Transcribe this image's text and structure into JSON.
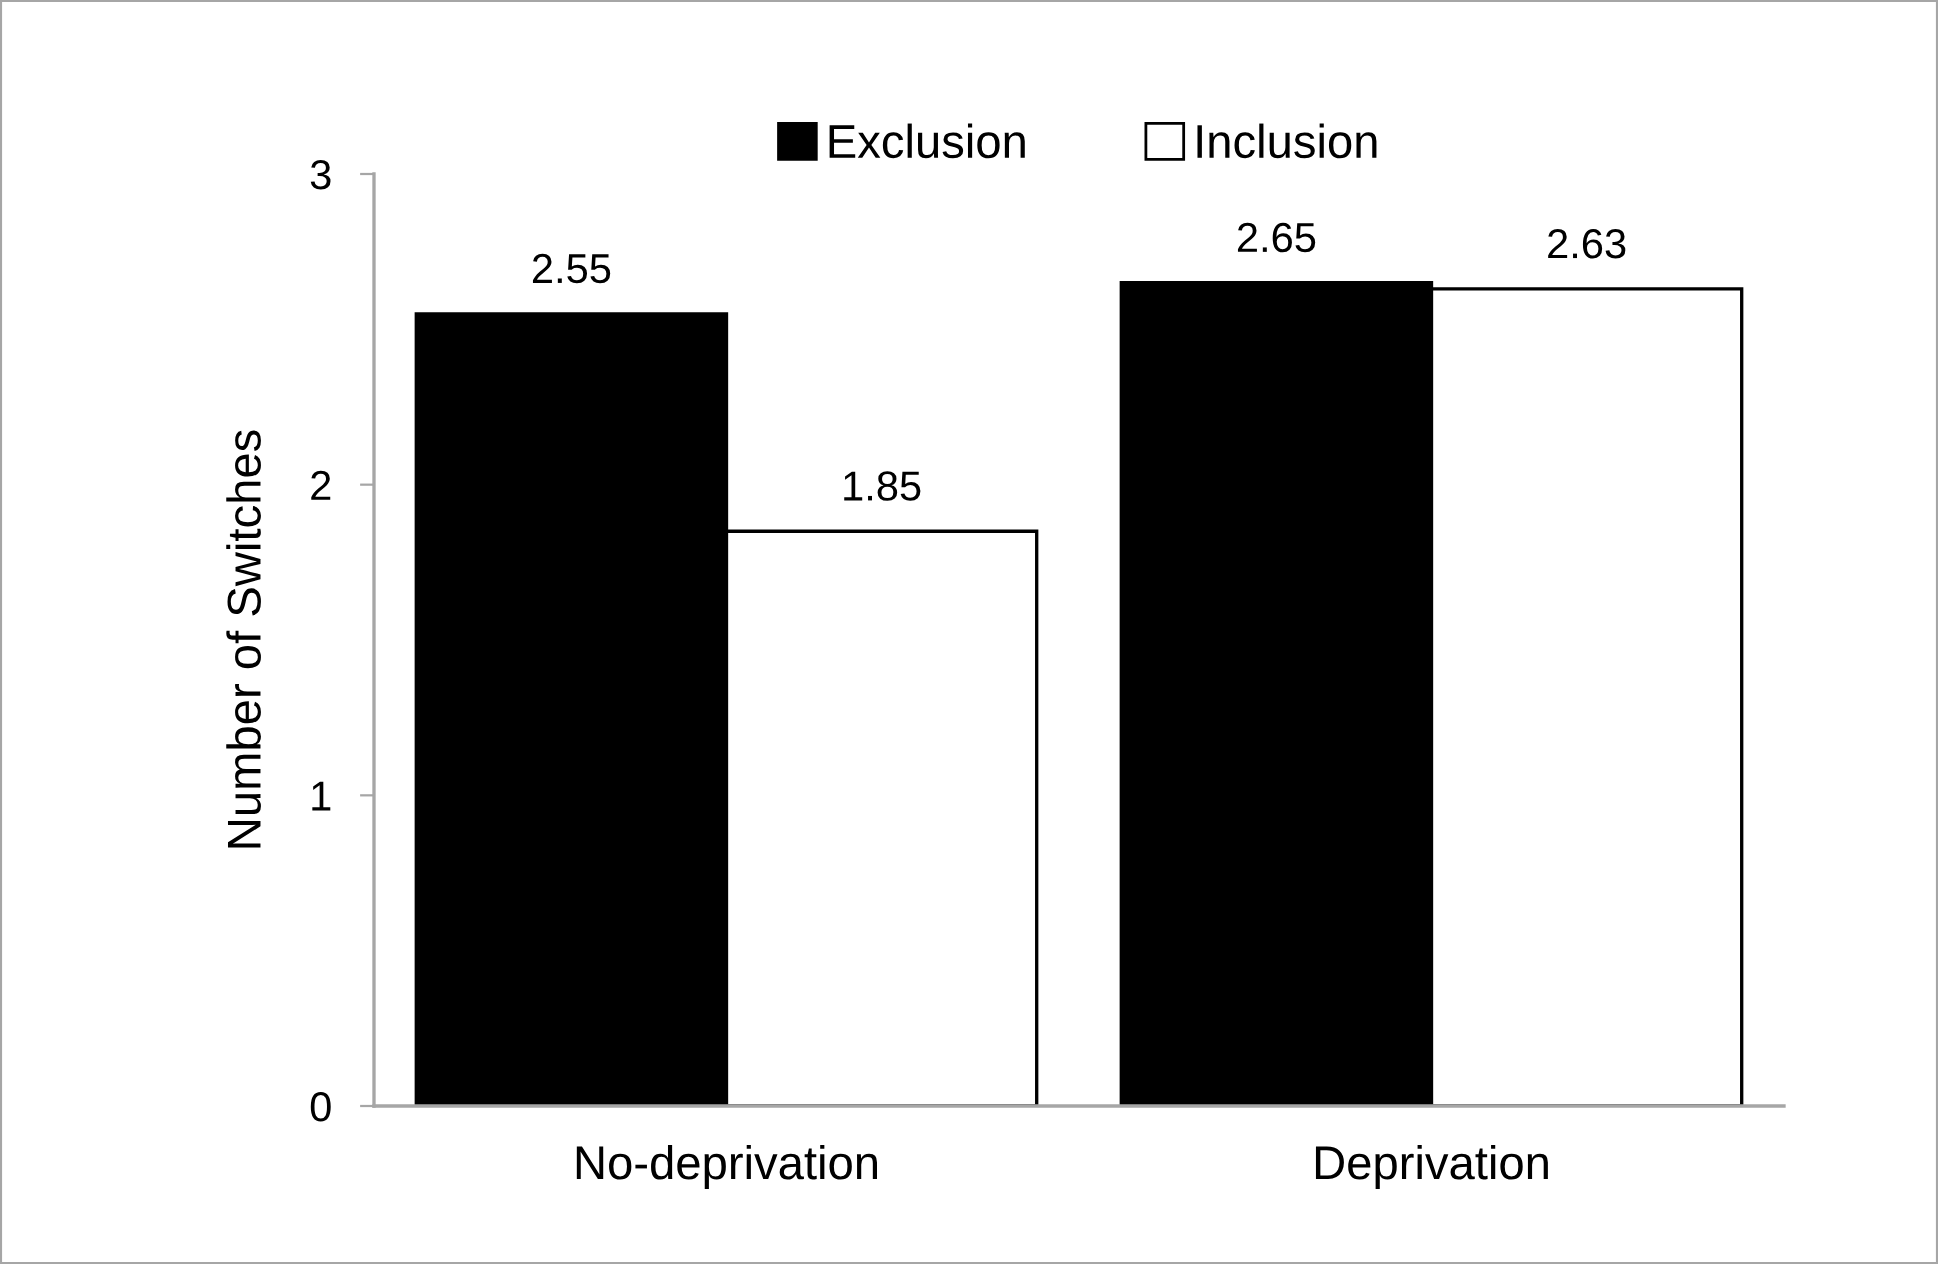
{
  "chart_data": {
    "type": "bar",
    "ylabel": "Number of Switches",
    "categories": [
      "No-deprivation",
      "Deprivation"
    ],
    "series": [
      {
        "name": "Exclusion",
        "color": "#000000",
        "values": [
          2.55,
          2.65
        ]
      },
      {
        "name": "Inclusion",
        "color": "#ffffff",
        "values": [
          1.85,
          2.63
        ]
      }
    ],
    "ylim": [
      0,
      3
    ],
    "yticks": [
      0,
      1,
      2,
      3
    ],
    "data_labels": true,
    "legend": "top",
    "grid": false
  }
}
